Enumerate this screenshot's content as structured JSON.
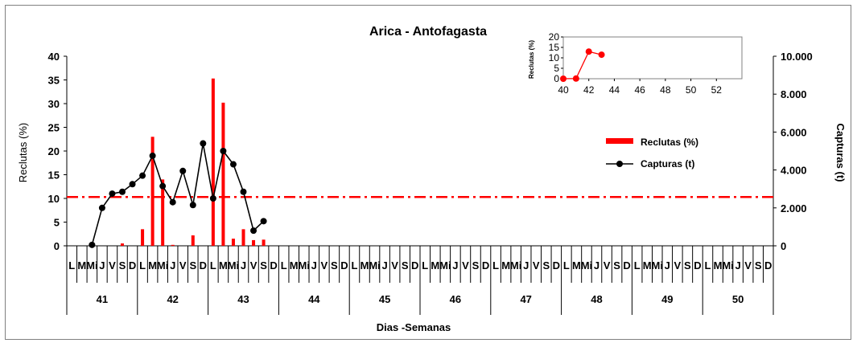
{
  "chart_data": [
    {
      "type": "bar+line",
      "title": "Arica - Antofagasta",
      "xlabel": "Dias -Semanas",
      "ylabel": "Reclutas (%)",
      "y2label": "Capturas (t)",
      "ylim": [
        0,
        40
      ],
      "y2lim": [
        0,
        10000
      ],
      "yticks": [
        "0",
        "5",
        "10",
        "15",
        "20",
        "25",
        "30",
        "35",
        "40"
      ],
      "y2ticks": [
        "0",
        "2.000",
        "4.000",
        "6.000",
        "8.000",
        "10.000"
      ],
      "day_labels": [
        "L",
        "M",
        "Mi",
        "J",
        "V",
        "S",
        "D"
      ],
      "weeks": [
        "41",
        "42",
        "43",
        "44",
        "45",
        "46",
        "47",
        "48",
        "49",
        "50"
      ],
      "reference_line": 10.3,
      "legend_position": "right",
      "colors": {
        "bars": "#ff0000",
        "line": "#000000",
        "reference": "#ff0000"
      },
      "series": [
        {
          "name": "Reclutas (%)",
          "type": "bar",
          "values": [
            0,
            0,
            0.1,
            0,
            0,
            0.5,
            0,
            3.5,
            23,
            14,
            0.2,
            0,
            2.2,
            0,
            35.3,
            30.2,
            1.5,
            3.5,
            1.2,
            1.3,
            0
          ]
        },
        {
          "name": "Capturas (t)",
          "type": "line",
          "values": [
            null,
            null,
            50,
            2000,
            2750,
            2850,
            3250,
            3700,
            4750,
            3150,
            2300,
            3950,
            2150,
            5400,
            2500,
            5000,
            4300,
            2850,
            800,
            1300,
            null
          ]
        }
      ]
    },
    {
      "type": "line",
      "ylabel": "Reclutas (%)",
      "xlim": [
        40,
        54
      ],
      "ylim": [
        0,
        20
      ],
      "xticks": [
        "40",
        "42",
        "44",
        "46",
        "48",
        "50",
        "52"
      ],
      "yticks": [
        "0",
        "5",
        "10",
        "15",
        "20"
      ],
      "x": [
        40,
        41,
        42,
        43
      ],
      "values": [
        0,
        0.1,
        13,
        11.5
      ]
    }
  ]
}
